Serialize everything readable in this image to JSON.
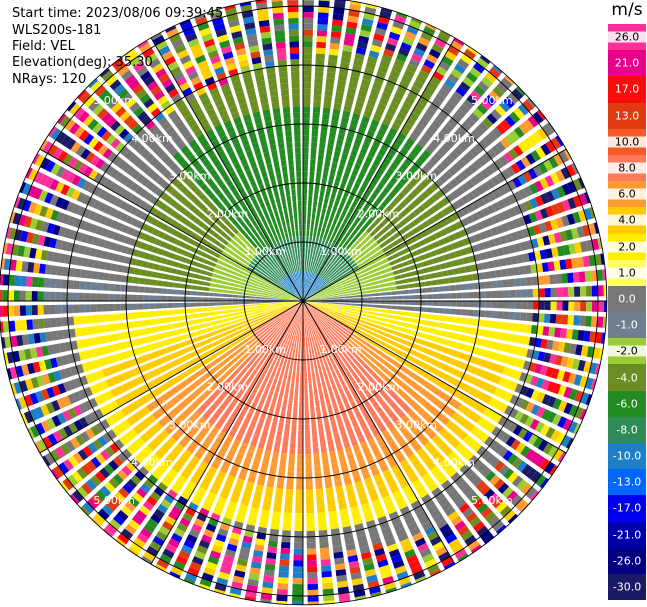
{
  "header": {
    "start_time": "Start time: 2023/08/06 09:39:45",
    "instrument": "WLS200s-181",
    "field": "Field: VEL",
    "elevation": "Elevation(deg): 35.30",
    "nrays": "NRays: 120"
  },
  "colorbar": {
    "unit": "m/s",
    "ticks": [
      "26.0",
      "21.0",
      "17.0",
      "13.0",
      "10.0",
      "8.0",
      "6.0",
      "4.0",
      "2.0",
      "1.0",
      "0.0",
      "-1.0",
      "-2.0",
      "-4.0",
      "-6.0",
      "-8.0",
      "-10.0",
      "-13.0",
      "-17.0",
      "-21.0",
      "-26.0",
      "-30.0"
    ],
    "colors": [
      "#ff2f9a",
      "#e8008a",
      "#ff0a0a",
      "#e23a10",
      "#f75a28",
      "#ff7a5a",
      "#ff9a33",
      "#ffcc00",
      "#ffee00",
      "#ffff66",
      "#777777",
      "#6f7f8f",
      "#9acd32",
      "#6b8e23",
      "#228b22",
      "#2e8b57",
      "#1e7fc8",
      "#0066ff",
      "#0000ee",
      "#0000aa",
      "#000080",
      "#1a1a66"
    ]
  },
  "chart_data": {
    "type": "ppi",
    "field": "VEL",
    "units": "m/s",
    "nrays": 120,
    "elevation_deg": 35.3,
    "range_rings": [
      {
        "label": "1.00km",
        "range_km": 1.0
      },
      {
        "label": "2.00km",
        "range_km": 2.0
      },
      {
        "label": "3.00km",
        "range_km": 3.0
      },
      {
        "label": "4.00km",
        "range_km": 4.0
      },
      {
        "label": "5.00km",
        "range_km": 5.0
      }
    ],
    "velocity_pattern": {
      "north_sector": -6.0,
      "north_core": -10.0,
      "south_sector": 8.0,
      "south_edge": 4.0,
      "east_west_boundary": 0.0,
      "outer_noise_start_km": 4.2
    }
  }
}
